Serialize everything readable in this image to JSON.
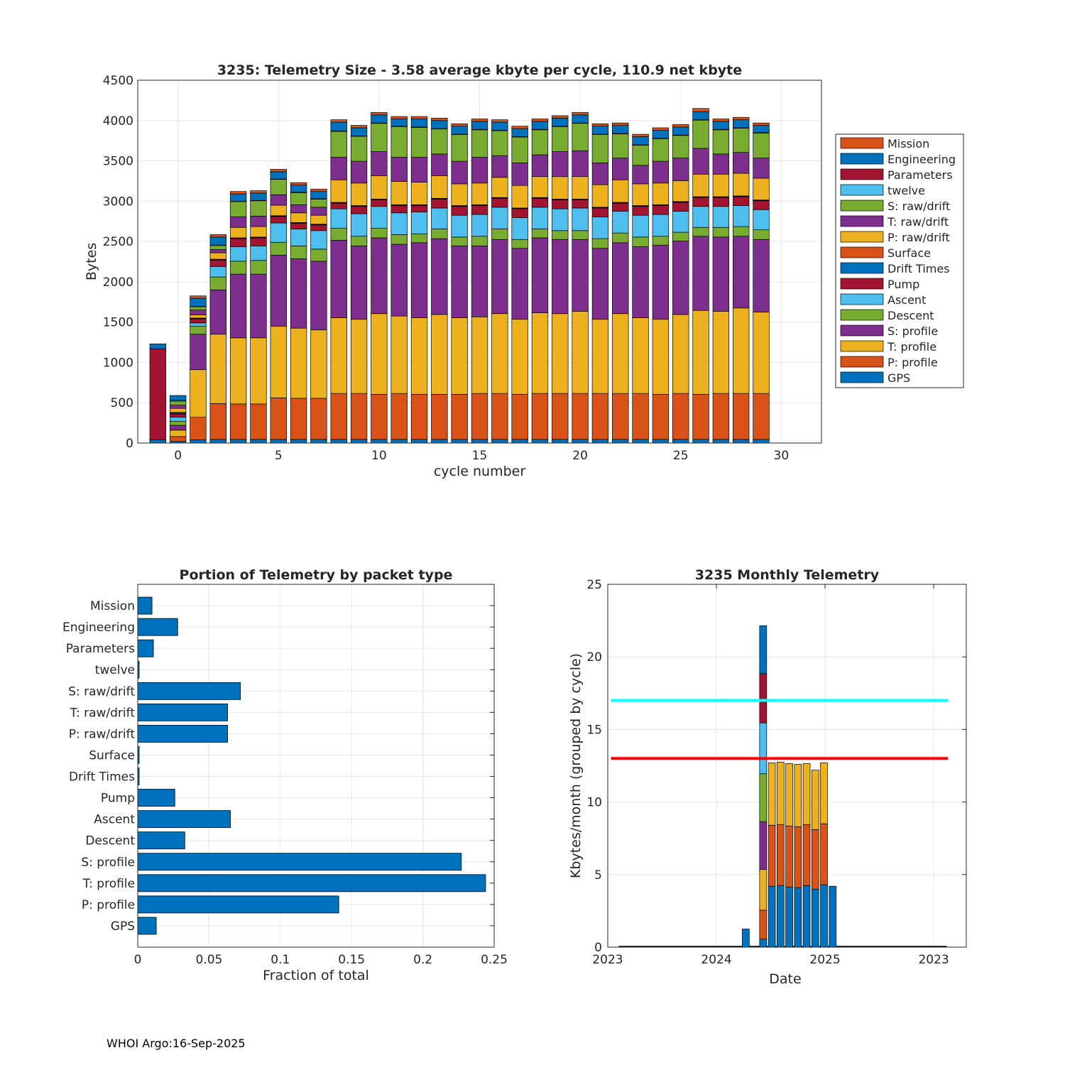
{
  "footer": "WHOI Argo:16-Sep-2025",
  "colors": {
    "Mission": "#D95319",
    "Engineering": "#0072BD",
    "Parameters": "#A2142F",
    "twelve": "#4DBEEE",
    "S: raw/drift": "#77AC30",
    "T: raw/drift": "#7E2F8E",
    "P: raw/drift": "#EDB120",
    "Surface": "#D95319",
    "Drift Times": "#0072BD",
    "Pump": "#A2142F",
    "Ascent": "#4DBEEE",
    "Descent": "#77AC30",
    "S: profile": "#7E2F8E",
    "T: profile": "#EDB120",
    "P: profile": "#D95319",
    "GPS": "#0072BD",
    "threshold_cyan": "#00FFFF",
    "threshold_red": "#FF0000"
  },
  "chart_data": [
    {
      "type": "bar",
      "stacked": true,
      "title": "3235: Telemetry Size - 3.58 average kbyte per cycle,  110.9 net kbyte",
      "xlabel": "cycle number",
      "ylabel": "Bytes",
      "xlim": [
        -2,
        32
      ],
      "ylim": [
        0,
        4500
      ],
      "xticks": [
        0,
        5,
        10,
        15,
        20,
        25,
        30
      ],
      "yticks": [
        0,
        500,
        1000,
        1500,
        2000,
        2500,
        3000,
        3500,
        4000,
        4500
      ],
      "legend_position": "right",
      "legend": [
        "Mission",
        "Engineering",
        "Parameters",
        "twelve",
        "S: raw/drift",
        "T: raw/drift",
        "P: raw/drift",
        "Surface",
        "Drift Times",
        "Pump",
        "Ascent",
        "Descent",
        "S: profile",
        "T: profile",
        "P: profile",
        "GPS"
      ],
      "stack_order": [
        "GPS",
        "P: profile",
        "T: profile",
        "S: profile",
        "Descent",
        "Ascent",
        "Pump",
        "Drift Times",
        "Surface",
        "P: raw/drift",
        "T: raw/drift",
        "S: raw/drift",
        "twelve",
        "Parameters",
        "Engineering",
        "Mission"
      ],
      "cycles": [
        -1,
        0,
        1,
        2,
        3,
        4,
        5,
        6,
        7,
        8,
        9,
        10,
        11,
        12,
        13,
        14,
        15,
        16,
        17,
        18,
        19,
        20,
        21,
        22,
        23,
        24,
        25,
        26,
        27,
        28,
        29
      ],
      "segments": [
        [
          40,
          0,
          0,
          0,
          0,
          0,
          1130,
          0,
          0,
          0,
          0,
          0,
          0,
          0,
          60,
          0
        ],
        [
          20,
          60,
          80,
          60,
          50,
          50,
          40,
          10,
          10,
          50,
          40,
          50,
          10,
          0,
          60,
          0
        ],
        [
          40,
          280,
          590,
          440,
          100,
          40,
          50,
          5,
          5,
          40,
          60,
          40,
          5,
          0,
          100,
          30
        ],
        [
          45,
          445,
          860,
          550,
          160,
          130,
          80,
          5,
          5,
          80,
          40,
          50,
          5,
          0,
          100,
          30
        ],
        [
          45,
          440,
          820,
          790,
          160,
          180,
          100,
          5,
          5,
          130,
          130,
          190,
          5,
          0,
          90,
          30
        ],
        [
          45,
          440,
          820,
          790,
          170,
          180,
          100,
          5,
          5,
          130,
          130,
          190,
          5,
          0,
          90,
          30
        ],
        [
          45,
          515,
          890,
          880,
          160,
          240,
          80,
          5,
          5,
          130,
          130,
          190,
          5,
          0,
          90,
          30
        ],
        [
          45,
          510,
          870,
          860,
          160,
          210,
          70,
          5,
          5,
          120,
          100,
          150,
          5,
          0,
          90,
          30
        ],
        [
          45,
          510,
          850,
          850,
          150,
          230,
          70,
          5,
          5,
          110,
          100,
          100,
          5,
          0,
          90,
          30
        ],
        [
          45,
          570,
          940,
          960,
          150,
          240,
          70,
          5,
          5,
          280,
          280,
          320,
          5,
          0,
          110,
          30
        ],
        [
          45,
          570,
          920,
          910,
          120,
          280,
          90,
          5,
          5,
          280,
          270,
          310,
          5,
          0,
          100,
          30
        ],
        [
          45,
          560,
          1000,
          940,
          120,
          270,
          80,
          5,
          5,
          290,
          300,
          350,
          5,
          0,
          100,
          30
        ],
        [
          45,
          570,
          960,
          890,
          120,
          270,
          90,
          5,
          5,
          290,
          300,
          380,
          5,
          0,
          90,
          30
        ],
        [
          45,
          560,
          950,
          930,
          110,
          270,
          80,
          5,
          5,
          280,
          310,
          370,
          5,
          0,
          100,
          30
        ],
        [
          45,
          560,
          990,
          940,
          120,
          260,
          110,
          5,
          5,
          280,
          270,
          310,
          5,
          0,
          100,
          30
        ],
        [
          45,
          560,
          950,
          890,
          110,
          270,
          110,
          5,
          5,
          270,
          280,
          330,
          5,
          0,
          100,
          30
        ],
        [
          45,
          570,
          950,
          880,
          120,
          270,
          110,
          5,
          5,
          270,
          320,
          340,
          5,
          0,
          100,
          30
        ],
        [
          45,
          570,
          990,
          920,
          130,
          270,
          110,
          5,
          5,
          250,
          270,
          310,
          5,
          0,
          100,
          30
        ],
        [
          45,
          560,
          930,
          880,
          110,
          270,
          110,
          5,
          5,
          280,
          280,
          320,
          5,
          0,
          100,
          30
        ],
        [
          45,
          570,
          1000,
          930,
          110,
          270,
          110,
          5,
          5,
          260,
          270,
          310,
          5,
          0,
          100,
          30
        ],
        [
          45,
          570,
          990,
          920,
          110,
          270,
          110,
          5,
          5,
          280,
          310,
          310,
          5,
          0,
          100,
          30
        ],
        [
          45,
          570,
          1020,
          890,
          110,
          280,
          100,
          5,
          5,
          280,
          320,
          340,
          5,
          0,
          100,
          30
        ],
        [
          45,
          570,
          920,
          880,
          120,
          270,
          110,
          5,
          5,
          280,
          270,
          350,
          5,
          0,
          100,
          30
        ],
        [
          45,
          570,
          990,
          880,
          120,
          270,
          100,
          5,
          5,
          280,
          270,
          300,
          5,
          0,
          100,
          30
        ],
        [
          45,
          570,
          940,
          880,
          120,
          270,
          110,
          5,
          5,
          270,
          230,
          250,
          5,
          0,
          100,
          30
        ],
        [
          45,
          560,
          930,
          920,
          110,
          270,
          110,
          5,
          5,
          270,
          270,
          280,
          5,
          0,
          100,
          30
        ],
        [
          45,
          570,
          980,
          910,
          110,
          260,
          110,
          5,
          5,
          260,
          280,
          280,
          5,
          0,
          100,
          30
        ],
        [
          45,
          560,
          1040,
          920,
          110,
          260,
          110,
          5,
          5,
          280,
          320,
          350,
          5,
          0,
          100,
          40
        ],
        [
          45,
          570,
          1020,
          920,
          120,
          260,
          110,
          5,
          5,
          280,
          250,
          300,
          5,
          0,
          100,
          30
        ],
        [
          45,
          570,
          1060,
          890,
          120,
          260,
          110,
          5,
          5,
          280,
          260,
          300,
          5,
          0,
          100,
          30
        ],
        [
          45,
          570,
          1010,
          900,
          120,
          250,
          110,
          5,
          5,
          270,
          250,
          310,
          5,
          0,
          90,
          30
        ]
      ]
    },
    {
      "type": "bar",
      "orientation": "horizontal",
      "title": "Portion of Telemetry by packet type",
      "xlabel": "Fraction of total",
      "ylabel": "",
      "xlim": [
        0,
        0.25
      ],
      "xticks": [
        "0",
        "0.05",
        "0.1",
        "0.15",
        "0.2",
        "0.25"
      ],
      "categories": [
        "Mission",
        "Engineering",
        "Parameters",
        "twelve",
        "S: raw/drift",
        "T: raw/drift",
        "P: raw/drift",
        "Surface",
        "Drift Times",
        "Pump",
        "Ascent",
        "Descent",
        "S: profile",
        "T: profile",
        "P: profile",
        "GPS"
      ],
      "values": [
        0.01,
        0.028,
        0.011,
        0.001,
        0.072,
        0.063,
        0.063,
        0.001,
        0.001,
        0.026,
        0.065,
        0.033,
        0.227,
        0.244,
        0.141,
        0.013
      ]
    },
    {
      "type": "bar",
      "stacked": true,
      "title": "3235 Monthly Telemetry",
      "xlabel": "Date",
      "ylabel": "Kbytes/month (grouped by cycle)",
      "ylim": [
        0,
        25
      ],
      "yticks": [
        0,
        5,
        10,
        15,
        20,
        25
      ],
      "xlim": [
        0,
        33
      ],
      "xtick_positions": [
        0,
        10,
        20,
        30
      ],
      "xticks": [
        "2023",
        "2024",
        "2025",
        "2023"
      ],
      "thresholds": [
        {
          "value": 17,
          "color": "#00FFFF"
        },
        {
          "value": 13,
          "color": "#FF0000"
        }
      ],
      "segment_colors": [
        "#0072BD",
        "#D95319",
        "#EDB120",
        "#7E2F8E",
        "#77AC30",
        "#4DBEEE",
        "#A2142F",
        "#0072BD"
      ],
      "months": [
        {
          "x": 12.7,
          "segments": [
            1.25
          ]
        },
        {
          "x": 14.3,
          "segments": [
            0.55,
            2.0,
            2.8,
            3.3,
            3.3,
            3.5,
            3.4,
            3.3
          ]
        },
        {
          "x": 15.1,
          "segments": [
            4.2,
            4.2,
            4.3
          ]
        },
        {
          "x": 15.9,
          "segments": [
            4.25,
            4.2,
            4.3
          ]
        },
        {
          "x": 16.7,
          "segments": [
            4.15,
            4.2,
            4.3
          ]
        },
        {
          "x": 17.5,
          "segments": [
            4.1,
            4.2,
            4.3
          ]
        },
        {
          "x": 18.3,
          "segments": [
            4.25,
            4.2,
            4.2
          ]
        },
        {
          "x": 19.1,
          "segments": [
            4.0,
            4.1,
            4.1
          ]
        },
        {
          "x": 19.9,
          "segments": [
            4.3,
            4.2,
            4.2
          ]
        },
        {
          "x": 20.7,
          "segments": [
            4.2
          ]
        }
      ]
    }
  ]
}
